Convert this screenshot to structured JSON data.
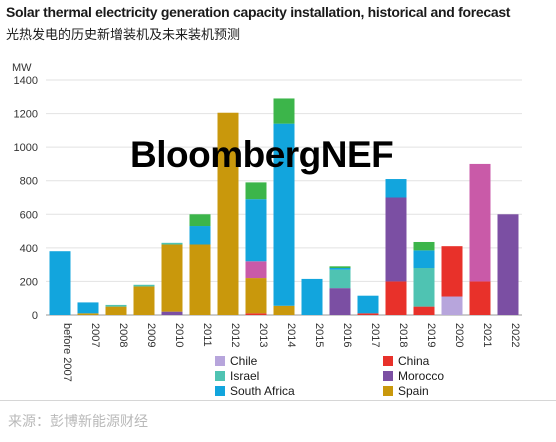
{
  "title": "Solar thermal electricity generation capacity installation, historical and forecast",
  "subtitle": "光热发电的历史新增装机及未来装机预测",
  "watermark": "BloombergNEF",
  "source": "来源：彭博新能源财经",
  "colors": {
    "Chile": "#b7a5dc",
    "Israel": "#4fc3b2",
    "South Africa": "#12a5dd",
    "China": "#e8312a",
    "Morocco": "#7b4fa3",
    "Spain": "#c9980c",
    "Forecast China 2021": "#c95aa8"
  },
  "legend": [
    {
      "name": "Chile",
      "color": "#b7a5dc"
    },
    {
      "name": "China",
      "color": "#e8312a"
    },
    {
      "name": "Israel",
      "color": "#4fc3b2"
    },
    {
      "name": "Morocco",
      "color": "#7b4fa3"
    },
    {
      "name": "South Africa",
      "color": "#12a5dd"
    },
    {
      "name": "Spain",
      "color": "#c9980c"
    }
  ],
  "chart_data": {
    "type": "bar",
    "stacked": true,
    "title": "Solar thermal electricity generation capacity installation, historical and forecast",
    "ylabel": "MW",
    "ylim": [
      0,
      1400
    ],
    "yticks": [
      0,
      200,
      400,
      600,
      800,
      1000,
      1200,
      1400
    ],
    "categories": [
      "before 2007",
      "2007",
      "2008",
      "2009",
      "2010",
      "2011",
      "2012",
      "2013",
      "2014",
      "2015",
      "2016",
      "2017",
      "2018",
      "2019",
      "2020",
      "2021",
      "2022"
    ],
    "bars": [
      {
        "category": "before 2007",
        "segments": [
          {
            "name": "South Africa",
            "color": "#12a5dd",
            "value": 380
          }
        ]
      },
      {
        "category": "2007",
        "segments": [
          {
            "name": "Spain",
            "color": "#c9980c",
            "value": 10
          },
          {
            "name": "South Africa",
            "color": "#12a5dd",
            "value": 65
          }
        ]
      },
      {
        "category": "2008",
        "segments": [
          {
            "name": "Spain",
            "color": "#c9980c",
            "value": 50
          },
          {
            "name": "Israel",
            "color": "#4fc3b2",
            "value": 10
          }
        ]
      },
      {
        "category": "2009",
        "segments": [
          {
            "name": "Spain",
            "color": "#c9980c",
            "value": 170
          },
          {
            "name": "Israel",
            "color": "#4fc3b2",
            "value": 10
          }
        ]
      },
      {
        "category": "2010",
        "segments": [
          {
            "name": "Morocco",
            "color": "#7b4fa3",
            "value": 20
          },
          {
            "name": "Spain",
            "color": "#c9980c",
            "value": 400
          },
          {
            "name": "Israel",
            "color": "#4fc3b2",
            "value": 10
          }
        ]
      },
      {
        "category": "2011",
        "segments": [
          {
            "name": "Spain",
            "color": "#c9980c",
            "value": 420
          },
          {
            "name": "South Africa",
            "color": "#12a5dd",
            "value": 110
          },
          {
            "name": "Green",
            "color": "#3cb54a",
            "value": 70
          }
        ]
      },
      {
        "category": "2012",
        "segments": [
          {
            "name": "Spain",
            "color": "#c9980c",
            "value": 1205
          }
        ]
      },
      {
        "category": "2013",
        "segments": [
          {
            "name": "China",
            "color": "#e8312a",
            "value": 10
          },
          {
            "name": "Spain",
            "color": "#c9980c",
            "value": 210
          },
          {
            "name": "Magenta",
            "color": "#c95aa8",
            "value": 100
          },
          {
            "name": "South Africa",
            "color": "#12a5dd",
            "value": 370
          },
          {
            "name": "Green",
            "color": "#3cb54a",
            "value": 100
          }
        ]
      },
      {
        "category": "2014",
        "segments": [
          {
            "name": "Spain",
            "color": "#c9980c",
            "value": 55
          },
          {
            "name": "South Africa",
            "color": "#12a5dd",
            "value": 1085
          },
          {
            "name": "Green",
            "color": "#3cb54a",
            "value": 150
          }
        ]
      },
      {
        "category": "2015",
        "segments": [
          {
            "name": "South Africa",
            "color": "#12a5dd",
            "value": 215
          }
        ]
      },
      {
        "category": "2016",
        "segments": [
          {
            "name": "Morocco",
            "color": "#7b4fa3",
            "value": 160
          },
          {
            "name": "Israel",
            "color": "#4fc3b2",
            "value": 110
          },
          {
            "name": "South Africa",
            "color": "#12a5dd",
            "value": 10
          },
          {
            "name": "Green",
            "color": "#3cb54a",
            "value": 10
          }
        ]
      },
      {
        "category": "2017",
        "segments": [
          {
            "name": "China",
            "color": "#e8312a",
            "value": 10
          },
          {
            "name": "South Africa",
            "color": "#12a5dd",
            "value": 105
          }
        ]
      },
      {
        "category": "2018",
        "segments": [
          {
            "name": "China",
            "color": "#e8312a",
            "value": 200
          },
          {
            "name": "Morocco",
            "color": "#7b4fa3",
            "value": 500
          },
          {
            "name": "South Africa",
            "color": "#12a5dd",
            "value": 110
          }
        ]
      },
      {
        "category": "2019",
        "segments": [
          {
            "name": "China",
            "color": "#e8312a",
            "value": 50
          },
          {
            "name": "Israel",
            "color": "#4fc3b2",
            "value": 230
          },
          {
            "name": "South Africa",
            "color": "#12a5dd",
            "value": 105
          },
          {
            "name": "Green",
            "color": "#3cb54a",
            "value": 50
          }
        ]
      },
      {
        "category": "2020",
        "segments": [
          {
            "name": "Chile",
            "color": "#b7a5dc",
            "value": 110
          },
          {
            "name": "China",
            "color": "#e8312a",
            "value": 300
          }
        ]
      },
      {
        "category": "2021",
        "segments": [
          {
            "name": "China",
            "color": "#e8312a",
            "value": 200
          },
          {
            "name": "Magenta",
            "color": "#c95aa8",
            "value": 700
          }
        ]
      },
      {
        "category": "2022",
        "segments": [
          {
            "name": "Morocco",
            "color": "#7b4fa3",
            "value": 600
          }
        ]
      }
    ],
    "grid": true,
    "legend_position": "bottom-right"
  }
}
